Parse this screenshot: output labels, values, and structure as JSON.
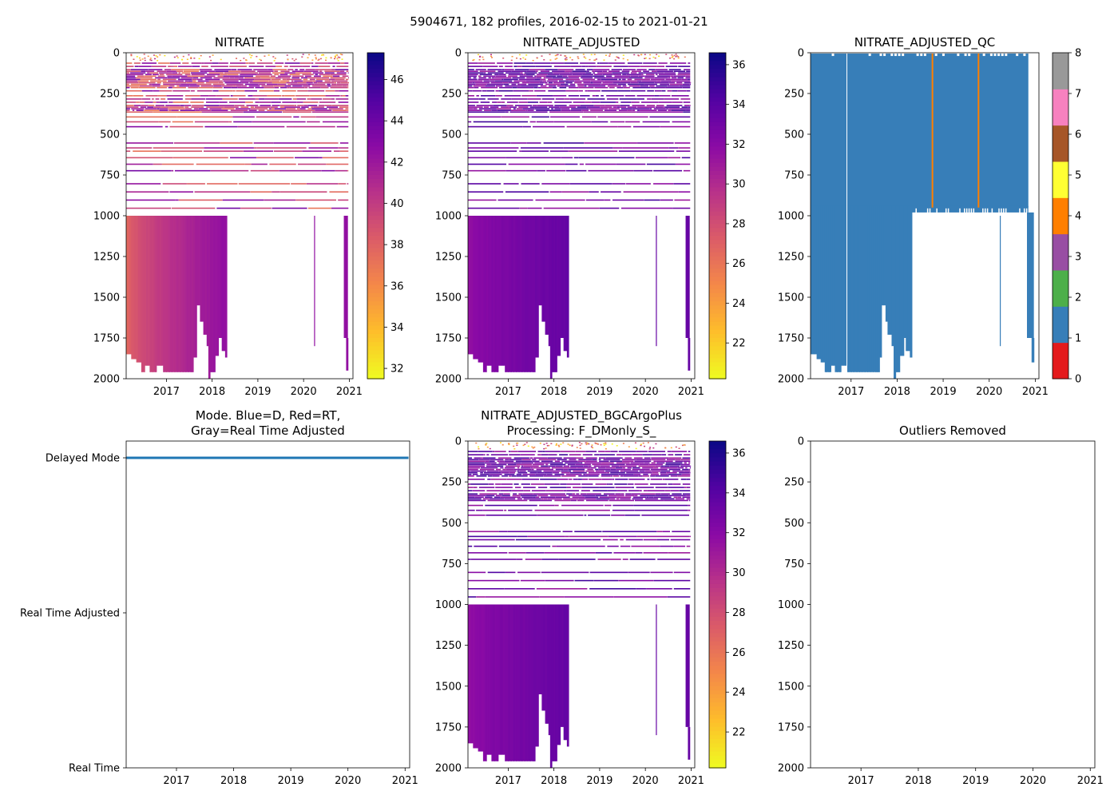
{
  "figure": {
    "suptitle": "5904671, 182 profiles, 2016-02-15 to 2021-01-21"
  },
  "chart_data": [
    {
      "id": "nitrate",
      "type": "heatmap",
      "title": "NITRATE",
      "xlim": [
        2016.12,
        2021.08
      ],
      "ylim": [
        2000,
        0
      ],
      "xticks": [
        "2017",
        "2018",
        "2019",
        "2020",
        "2021"
      ],
      "yticks": [
        "0",
        "250",
        "500",
        "750",
        "1000",
        "1250",
        "1500",
        "1750",
        "2000"
      ],
      "colorbar": {
        "cmap": "plasma_r",
        "range": [
          31.5,
          47.3
        ],
        "ticks": [
          "32",
          "34",
          "36",
          "38",
          "40",
          "42",
          "44",
          "46"
        ]
      },
      "deep_color_range": [
        37.5,
        42.5
      ]
    },
    {
      "id": "nitrate-adjusted",
      "type": "heatmap",
      "title": "NITRATE_ADJUSTED",
      "xlim": [
        2016.12,
        2021.08
      ],
      "ylim": [
        2000,
        0
      ],
      "xticks": [
        "2017",
        "2018",
        "2019",
        "2020",
        "2021"
      ],
      "yticks": [
        "0",
        "250",
        "500",
        "750",
        "1000",
        "1250",
        "1500",
        "1750",
        "2000"
      ],
      "colorbar": {
        "cmap": "plasma_r",
        "range": [
          20.2,
          36.6
        ],
        "ticks": [
          "22",
          "24",
          "26",
          "28",
          "30",
          "32",
          "34",
          "36"
        ]
      },
      "deep_color_range": [
        31.5,
        33.5
      ]
    },
    {
      "id": "nitrate-adjusted-qc",
      "type": "heatmap",
      "title": "NITRATE_ADJUSTED_QC",
      "xlim": [
        2016.12,
        2021.08
      ],
      "ylim": [
        2000,
        0
      ],
      "xticks": [
        "2017",
        "2018",
        "2019",
        "2020",
        "2021"
      ],
      "yticks": [
        "0",
        "250",
        "500",
        "750",
        "1000",
        "1250",
        "1500",
        "1750",
        "2000"
      ],
      "colorbar": {
        "cmap": "Set1",
        "range": [
          0,
          8
        ],
        "ticks": [
          "0",
          "1",
          "2",
          "3",
          "4",
          "5",
          "6",
          "7",
          "8"
        ],
        "classes": [
          "#e41a1c",
          "#377eb8",
          "#4daf4a",
          "#984ea3",
          "#ff7f00",
          "#ffff33",
          "#a65628",
          "#f781bf",
          "#999999"
        ]
      },
      "qc_fill_value": 1,
      "qc_flag_lines": [
        2018.75,
        2019.75
      ]
    },
    {
      "id": "mode",
      "type": "line",
      "title": "Mode. Blue=D, Red=RT,\nGray=Real Time Adjusted",
      "xlim": [
        2016.12,
        2021.08
      ],
      "xticks": [
        "2017",
        "2018",
        "2019",
        "2020",
        "2021"
      ],
      "categories": [
        "Delayed Mode",
        "Real Time Adjusted",
        "Real Time"
      ],
      "series": [
        {
          "name": "Delayed Mode",
          "color": "#1f77b4",
          "x": [
            2016.12,
            2021.06
          ],
          "y": [
            "Delayed Mode",
            "Delayed Mode"
          ]
        }
      ]
    },
    {
      "id": "bgcargoplus",
      "type": "heatmap",
      "title": "NITRATE_ADJUSTED_BGCArgoPlus\nProcessing: F_DMonly_S_",
      "xlim": [
        2016.12,
        2021.08
      ],
      "ylim": [
        2000,
        0
      ],
      "xticks": [
        "2017",
        "2018",
        "2019",
        "2020",
        "2021"
      ],
      "yticks": [
        "0",
        "250",
        "500",
        "750",
        "1000",
        "1250",
        "1500",
        "1750",
        "2000"
      ],
      "colorbar": {
        "cmap": "plasma_r",
        "range": [
          20.2,
          36.6
        ],
        "ticks": [
          "22",
          "24",
          "26",
          "28",
          "30",
          "32",
          "34",
          "36"
        ]
      },
      "deep_color_range": [
        31.5,
        33.5
      ]
    },
    {
      "id": "outliers",
      "type": "scatter",
      "title": "Outliers Removed",
      "xlim": [
        2016.12,
        2021.08
      ],
      "ylim": [
        2000,
        0
      ],
      "xticks": [
        "2017",
        "2018",
        "2019",
        "2020",
        "2021"
      ],
      "yticks": [
        "0",
        "250",
        "500",
        "750",
        "1000",
        "1250",
        "1500",
        "1750",
        "2000"
      ],
      "points": []
    }
  ]
}
